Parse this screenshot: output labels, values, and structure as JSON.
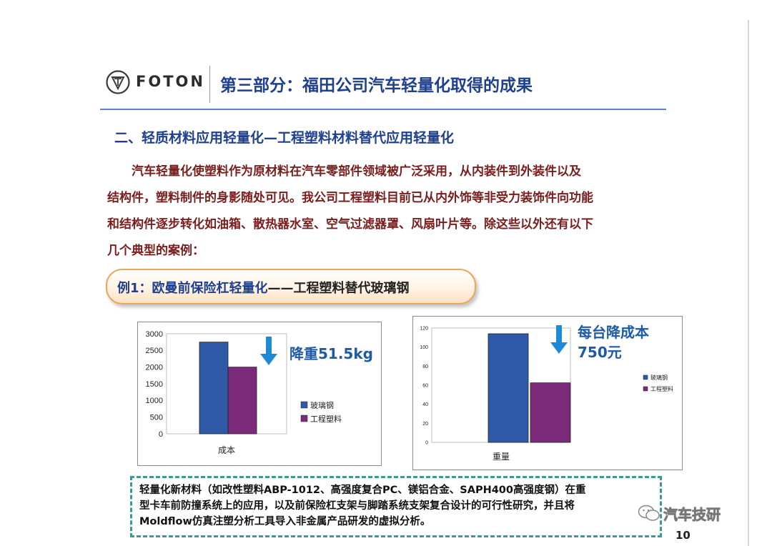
{
  "header": {
    "brand": "FOTON",
    "title": "第三部分：福田公司汽车轻量化取得的成果"
  },
  "section_heading": "二、轻质材料应用轻量化—工程塑料材料替代应用轻量化",
  "body_lines": [
    "　　汽车轻量化使塑料作为原材料在汽车零部件领域被广泛采用，从内装件到外装件以及",
    "结构件，塑料制件的身影随处可见。我公司工程塑料目前已从内外饰等非受力装饰件向功能",
    "和结构件逐步转化如油箱、散热器水室、空气过滤器罩、风扇叶片等。除这些以外还有以下",
    "几个典型的案例："
  ],
  "example": {
    "label": "例1：欧曼前保险杠轻量化",
    "rest": "——工程塑料替代玻璃钢"
  },
  "annotations": {
    "left": "降重51.5kg",
    "right_line1": "每台降成本",
    "right_line2": "750元"
  },
  "chart_data": [
    {
      "type": "bar",
      "categories": [
        "成本"
      ],
      "series": [
        {
          "name": "玻璃钢",
          "values": [
            2750
          ]
        },
        {
          "name": "工程塑料",
          "values": [
            2000
          ]
        }
      ],
      "xlabel": "成本",
      "ylim": [
        0,
        3000
      ],
      "yticks": [
        0,
        500,
        1000,
        1500,
        2000,
        2500,
        3000
      ],
      "legend": "right",
      "colors": [
        "#2f5aa8",
        "#7b2a7a"
      ]
    },
    {
      "type": "bar",
      "categories": [
        "重量"
      ],
      "series": [
        {
          "name": "玻璃钢",
          "values": [
            114
          ]
        },
        {
          "name": "工程塑料",
          "values": [
            62.5
          ]
        }
      ],
      "xlabel": "重量",
      "ylim": [
        0,
        120
      ],
      "yticks": [
        0,
        20,
        40,
        60,
        80,
        100,
        120
      ],
      "legend": "right",
      "colors": [
        "#2f5aa8",
        "#7b2a7a"
      ]
    }
  ],
  "note_lines": [
    "轻量化新材料（如改性塑料ABP-1012、高强度复合PC、镁铝合金、SAPH400高强度钢）在重",
    "型卡车前防撞系统上的应用，以及前保险杠支架与脚踏系统支架复合设计的可行性研究，并且将",
    "Moldflow仿真注塑分析工具导入非金属产品研发的虚拟分析。"
  ],
  "watermark": "汽车技研",
  "page_number": "10",
  "colors": {
    "title_blue": "#1f3f8f",
    "body_red": "#7a1d1d",
    "bar_blue": "#2f5aa8",
    "bar_purple": "#7b2a7a",
    "dash_teal": "#3a9b96",
    "annotation_blue": "#1e5aa8"
  }
}
